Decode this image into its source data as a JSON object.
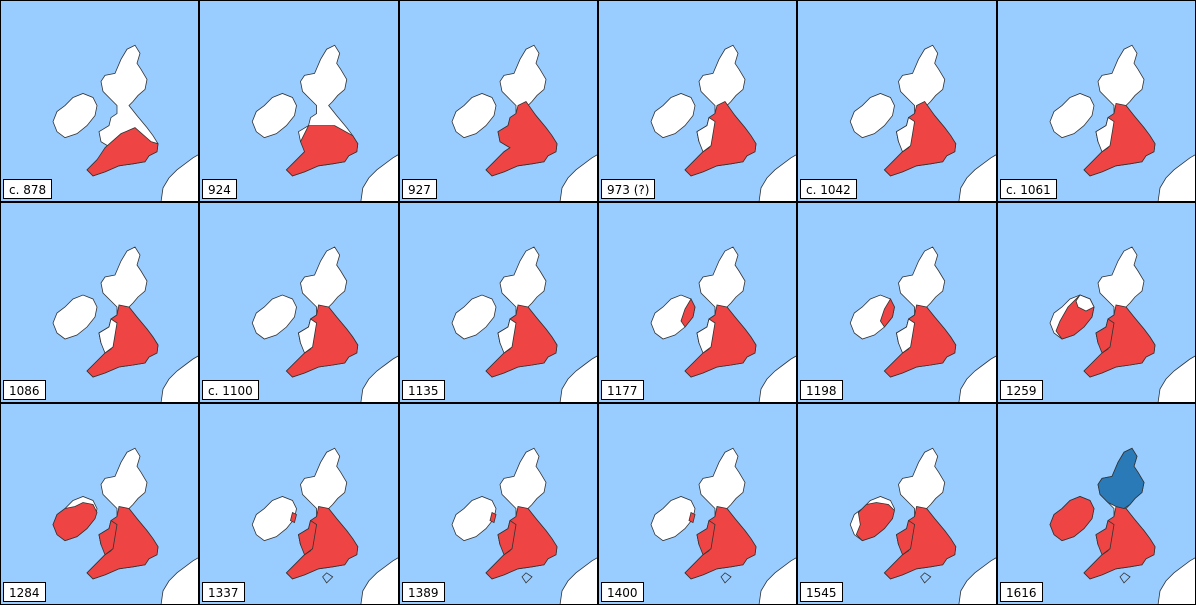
{
  "panels": [
    {
      "year": "c. 878",
      "stage": 0
    },
    {
      "year": "924",
      "stage": 1
    },
    {
      "year": "927",
      "stage": 2
    },
    {
      "year": "973 (?)",
      "stage": 3
    },
    {
      "year": "c. 1042",
      "stage": 3
    },
    {
      "year": "c. 1061",
      "stage": 4
    },
    {
      "year": "1086",
      "stage": 4
    },
    {
      "year": "c. 1100",
      "stage": 4
    },
    {
      "year": "1135",
      "stage": 4
    },
    {
      "year": "1177",
      "stage": 5
    },
    {
      "year": "1198",
      "stage": 5
    },
    {
      "year": "1259",
      "stage": 6
    },
    {
      "year": "1284",
      "stage": 7
    },
    {
      "year": "1337",
      "stage": 8
    },
    {
      "year": "1389",
      "stage": 8
    },
    {
      "year": "1400",
      "stage": 8
    },
    {
      "year": "1545",
      "stage": 9
    },
    {
      "year": "1616",
      "stage": 10
    }
  ],
  "colors": {
    "sea": "#99ccff",
    "land": "#ffffff",
    "english_crown": "#ee4444",
    "scottish_crown": "#2b7ab8",
    "coast": "#333333",
    "border": "#000000"
  }
}
